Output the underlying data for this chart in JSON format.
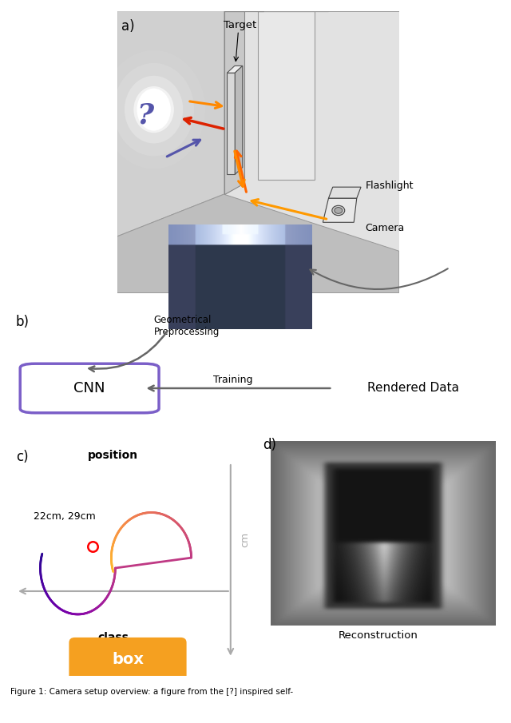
{
  "fig_width": 6.4,
  "fig_height": 9.05,
  "bg_color": "#ffffff",
  "label_a": "a)",
  "label_b": "b)",
  "label_c": "c)",
  "label_d": "d)",
  "cnn_box_color": "#7b5fc8",
  "cnn_text": "CNN",
  "box_label_text": "box",
  "box_label_color": "#f5a020",
  "reconstruction_text": "Reconstruction",
  "position_text": "position",
  "class_text": "class",
  "training_text": "Training",
  "rendered_data_text": "Rendered Data",
  "geo_preproc_text": "Geometrical\nPreprocessing",
  "target_text": "Target",
  "flashlight_text": "Flashlight",
  "camera_text": "Camera",
  "coords_text": "22cm, 29cm",
  "arrow_color": "#666666",
  "wall_color": "#d8d8d8",
  "wall_left_color": "#c8c8c8",
  "wall_right_color": "#e8e8e8",
  "floor_color": "#b8b8b8",
  "divider_color": "#d0d0d0",
  "orange_arrow": "#ff8800",
  "red_arrow": "#cc2200",
  "blue_arrow": "#5555aa",
  "caption": "Figure 1: Camera setup overview from the [?]..."
}
